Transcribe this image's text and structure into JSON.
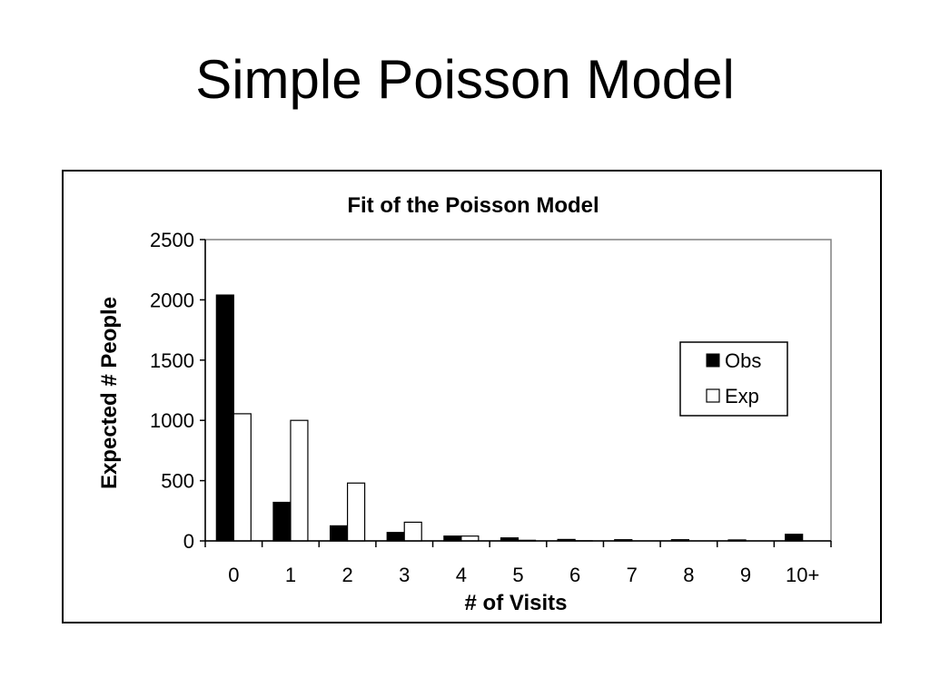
{
  "slide": {
    "title": "Simple Poisson Model"
  },
  "chart_data": {
    "type": "bar",
    "title": "Fit of the Poisson Model",
    "xlabel": "# of Visits",
    "ylabel": "Expected # People",
    "categories": [
      "0",
      "1",
      "2",
      "3",
      "4",
      "5",
      "6",
      "7",
      "8",
      "9",
      "10+"
    ],
    "series": [
      {
        "name": "Obs",
        "values": [
          2040,
          320,
          125,
          70,
          40,
          25,
          12,
          10,
          10,
          8,
          55
        ],
        "color": "#000000"
      },
      {
        "name": "Exp",
        "values": [
          1055,
          1000,
          480,
          155,
          40,
          5,
          1,
          0,
          0,
          0,
          0
        ],
        "color": "#ffffff"
      }
    ],
    "ylim": [
      0,
      2500
    ],
    "yticks": [
      0,
      500,
      1000,
      1500,
      2000,
      2500
    ],
    "grid": false,
    "legend": "right"
  }
}
